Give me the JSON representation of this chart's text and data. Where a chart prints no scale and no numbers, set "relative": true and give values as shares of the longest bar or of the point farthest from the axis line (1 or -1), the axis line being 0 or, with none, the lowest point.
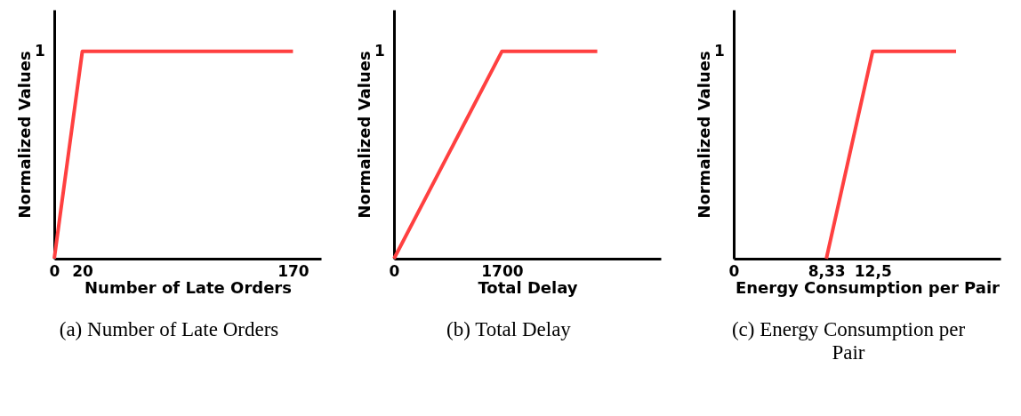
{
  "chart_data": [
    {
      "type": "line",
      "relative": true,
      "xlabel": "Number of Late Orders",
      "ylabel": "Normalized Values",
      "x": [
        0,
        20,
        170
      ],
      "values": [
        0,
        1,
        1
      ],
      "color": "#ff4040",
      "xlim": [
        0,
        190
      ],
      "xticks": [
        0,
        20,
        170
      ],
      "annotations": [
        "1",
        "(a) Number of Late Orders"
      ]
    },
    {
      "type": "line",
      "relative": true,
      "xlabel": "Total Delay",
      "ylabel": "Normalized Values",
      "x": [
        0,
        1700,
        3200
      ],
      "values": [
        0,
        1,
        1
      ],
      "color": "#ff4040",
      "xlim": [
        0,
        4200
      ],
      "xticks": [
        0,
        1700
      ],
      "annotations": [
        "1",
        "(b) Total Delay"
      ]
    },
    {
      "type": "line",
      "relative": true,
      "xlabel": "Energy Consumption per Pair",
      "ylabel": "Normalized Values",
      "x": [
        8.33,
        12.5,
        20
      ],
      "values": [
        0,
        1,
        1
      ],
      "color": "#ff4040",
      "xlim": [
        0,
        24
      ],
      "xticks": [
        0,
        {
          "value": 8.33,
          "label": "8,33"
        },
        {
          "value": 12.5,
          "label": "12,5"
        }
      ],
      "annotations": [
        "1",
        "(c) Energy Consumption per Pair"
      ]
    }
  ]
}
